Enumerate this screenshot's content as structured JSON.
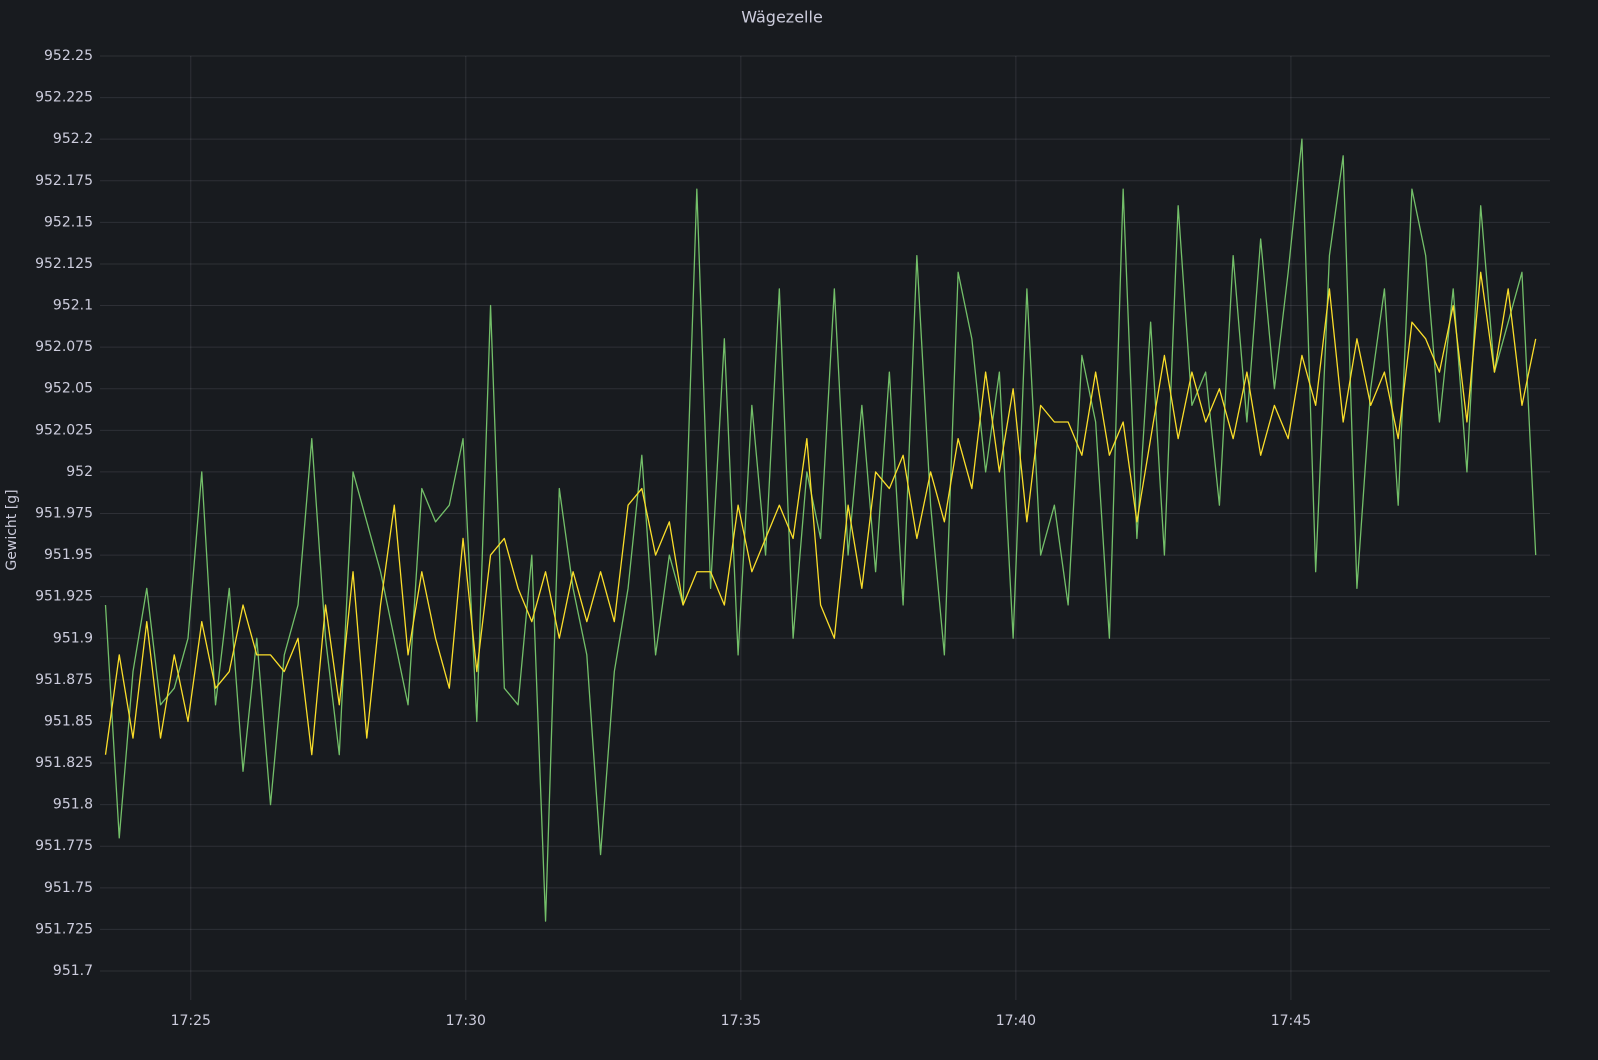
{
  "chart_data": {
    "type": "line",
    "title": "Wägezelle",
    "y_label": "Gewicht [g]",
    "x": [
      23.45,
      23.7,
      23.95,
      24.2,
      24.45,
      24.7,
      24.95,
      25.2,
      25.45,
      25.7,
      25.95,
      26.2,
      26.45,
      26.7,
      26.95,
      27.2,
      27.45,
      27.7,
      27.95,
      28.2,
      28.45,
      28.7,
      28.95,
      29.2,
      29.45,
      29.7,
      29.95,
      30.2,
      30.45,
      30.7,
      30.95,
      31.2,
      31.45,
      31.7,
      31.95,
      32.2,
      32.45,
      32.7,
      32.95,
      33.2,
      33.45,
      33.7,
      33.95,
      34.2,
      34.45,
      34.7,
      34.95,
      35.2,
      35.45,
      35.7,
      35.95,
      36.2,
      36.45,
      36.7,
      36.95,
      37.2,
      37.45,
      37.7,
      37.95,
      38.2,
      38.45,
      38.7,
      38.95,
      39.2,
      39.45,
      39.7,
      39.95,
      40.2,
      40.45,
      40.7,
      40.95,
      41.2,
      41.45,
      41.7,
      41.95,
      42.2,
      42.45,
      42.7,
      42.95,
      43.2,
      43.45,
      43.7,
      43.95,
      44.2,
      44.45,
      44.7,
      44.95,
      45.2,
      45.45,
      45.7,
      45.95,
      46.2,
      46.45,
      46.7,
      46.95,
      47.2,
      47.45,
      47.7,
      47.95,
      48.2,
      48.45,
      48.7,
      48.95,
      49.2,
      49.45
    ],
    "series": [
      {
        "color": "#73bf69",
        "values": [
          951.92,
          951.78,
          951.88,
          951.93,
          951.86,
          951.87,
          951.9,
          952.0,
          951.86,
          951.93,
          951.82,
          951.9,
          951.8,
          951.89,
          951.92,
          952.02,
          951.9,
          951.83,
          952.0,
          951.97,
          951.94,
          951.9,
          951.86,
          951.99,
          951.97,
          951.98,
          952.02,
          951.85,
          952.1,
          951.87,
          951.86,
          951.95,
          951.73,
          951.99,
          951.93,
          951.89,
          951.77,
          951.88,
          951.93,
          952.01,
          951.89,
          951.95,
          951.92,
          952.17,
          951.93,
          952.08,
          951.89,
          952.04,
          951.95,
          952.11,
          951.9,
          952.0,
          951.96,
          952.11,
          951.95,
          952.04,
          951.94,
          952.06,
          951.92,
          952.13,
          951.98,
          951.89,
          952.12,
          952.08,
          952.0,
          952.06,
          951.9,
          952.11,
          951.95,
          951.98,
          951.92,
          952.07,
          952.03,
          951.9,
          952.17,
          951.96,
          952.09,
          951.95,
          952.16,
          952.04,
          952.06,
          951.98,
          952.13,
          952.03,
          952.14,
          952.05,
          952.12,
          952.2,
          951.94,
          952.13,
          952.19,
          951.93,
          952.05,
          952.11,
          951.98,
          952.17,
          952.13,
          952.03,
          952.11,
          952.0,
          952.16,
          952.06,
          952.09,
          952.12,
          951.95
        ]
      },
      {
        "color": "#fade2a",
        "values": [
          951.83,
          951.89,
          951.84,
          951.91,
          951.84,
          951.89,
          951.85,
          951.91,
          951.87,
          951.88,
          951.92,
          951.89,
          951.89,
          951.88,
          951.9,
          951.83,
          951.92,
          951.86,
          951.94,
          951.84,
          951.92,
          951.98,
          951.89,
          951.94,
          951.9,
          951.87,
          951.96,
          951.88,
          951.95,
          951.96,
          951.93,
          951.91,
          951.94,
          951.9,
          951.94,
          951.91,
          951.94,
          951.91,
          951.98,
          951.99,
          951.95,
          951.97,
          951.92,
          951.94,
          951.94,
          951.92,
          951.98,
          951.94,
          951.96,
          951.98,
          951.96,
          952.02,
          951.92,
          951.9,
          951.98,
          951.93,
          952.0,
          951.99,
          952.01,
          951.96,
          952.0,
          951.97,
          952.02,
          951.99,
          952.06,
          952.0,
          952.05,
          951.97,
          952.04,
          952.03,
          952.03,
          952.01,
          952.06,
          952.01,
          952.03,
          951.97,
          952.02,
          952.07,
          952.02,
          952.06,
          952.03,
          952.05,
          952.02,
          952.06,
          952.01,
          952.04,
          952.02,
          952.07,
          952.04,
          952.11,
          952.03,
          952.08,
          952.04,
          952.06,
          952.02,
          952.09,
          952.08,
          952.06,
          952.1,
          952.03,
          952.12,
          952.06,
          952.11,
          952.04,
          952.08
        ]
      }
    ],
    "xlim": [
      23.35,
      49.71
    ],
    "xticks": [
      {
        "value": 25,
        "label": "17:25"
      },
      {
        "value": 30,
        "label": "17:30"
      },
      {
        "value": 35,
        "label": "17:35"
      },
      {
        "value": 40,
        "label": "17:40"
      },
      {
        "value": 45,
        "label": "17:45"
      }
    ],
    "ylim": [
      951.7,
      952.25
    ],
    "yticks": [
      951.7,
      951.725,
      951.75,
      951.775,
      951.8,
      951.825,
      951.85,
      951.875,
      951.9,
      951.925,
      951.95,
      951.975,
      952,
      952.025,
      952.05,
      952.075,
      952.1,
      952.125,
      952.15,
      952.175,
      952.2,
      952.225,
      952.25
    ],
    "grid": true
  }
}
